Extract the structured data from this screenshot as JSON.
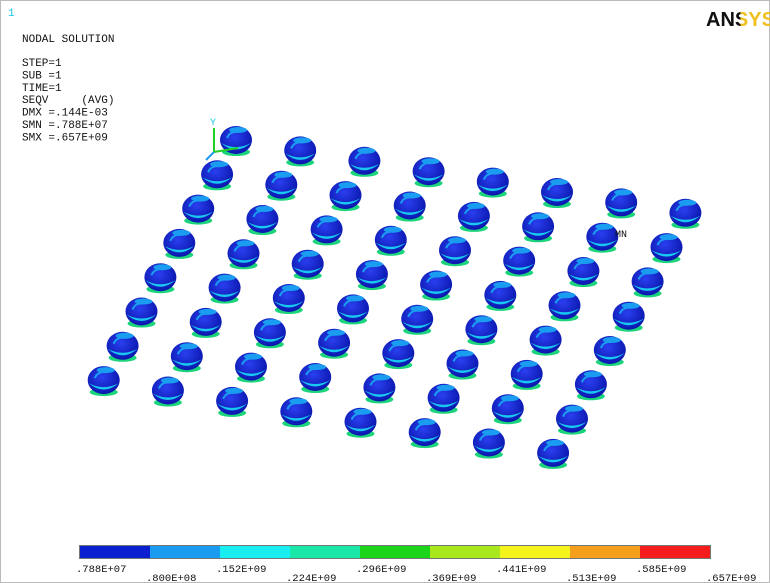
{
  "window_number": "1",
  "title": "NODAL SOLUTION",
  "info": [
    "STEP=1",
    "SUB =1",
    "TIME=1",
    "SEQV     (AVG)",
    "DMX =.144E-03",
    "SMN =.788E+07",
    "SMX =.657E+09"
  ],
  "logo": "ANSYS",
  "triad_label": "Y",
  "min_marker": "MN",
  "legend": {
    "labels": [
      ".788E+07",
      ".800E+08",
      ".152E+09",
      ".224E+09",
      ".296E+09",
      ".369E+09",
      ".441E+09",
      ".513E+09",
      ".585E+09",
      ".657E+09"
    ],
    "colors": [
      "#0a1fd0",
      "#1a9cf0",
      "#19eef0",
      "#19e8a8",
      "#1cd41c",
      "#a8e81c",
      "#f4f41c",
      "#f4a01c",
      "#f41c1c"
    ]
  }
}
